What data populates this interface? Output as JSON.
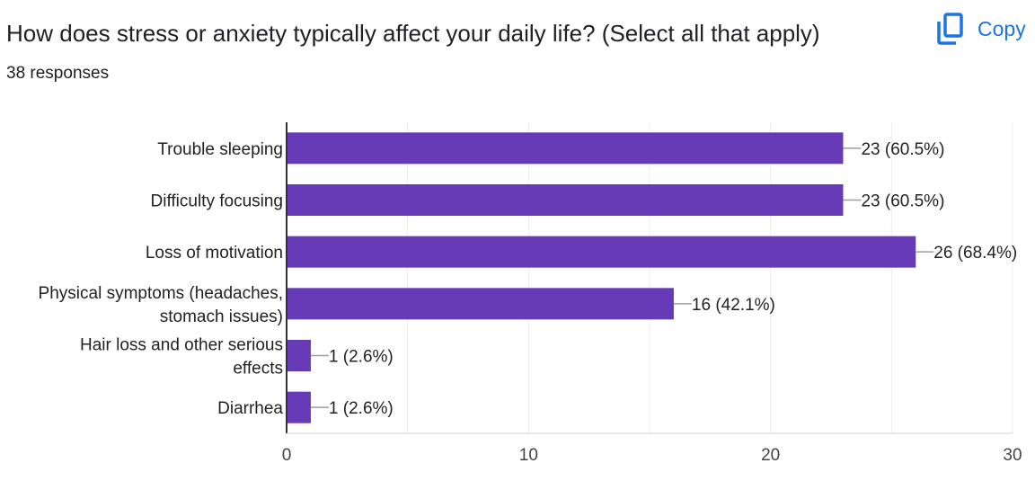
{
  "header": {
    "question": "How does stress or anxiety typically affect your daily life? (Select all that apply)",
    "responses": "38 responses",
    "copy_label": "Copy"
  },
  "icons": {
    "copy": "copy-icon"
  },
  "colors": {
    "bar": "#673ab7",
    "accent": "#1a73e8"
  },
  "chart_data": {
    "type": "bar",
    "orientation": "horizontal",
    "categories": [
      [
        "Trouble sleeping"
      ],
      [
        "Difficulty focusing"
      ],
      [
        "Loss of motivation"
      ],
      [
        "Physical symptoms (headaches,",
        "stomach issues)"
      ],
      [
        "Hair loss and other serious",
        "effects"
      ],
      [
        "Diarrhea"
      ]
    ],
    "values": [
      23,
      23,
      26,
      16,
      1,
      1
    ],
    "data_labels": [
      "23 (60.5%)",
      "23 (60.5%)",
      "26 (68.4%)",
      "16 (42.1%)",
      "1 (2.6%)",
      "1 (2.6%)"
    ],
    "xlim": [
      0,
      30
    ],
    "xticks": [
      0,
      10,
      20,
      30
    ],
    "grid": true,
    "title": "",
    "xlabel": "",
    "ylabel": ""
  }
}
